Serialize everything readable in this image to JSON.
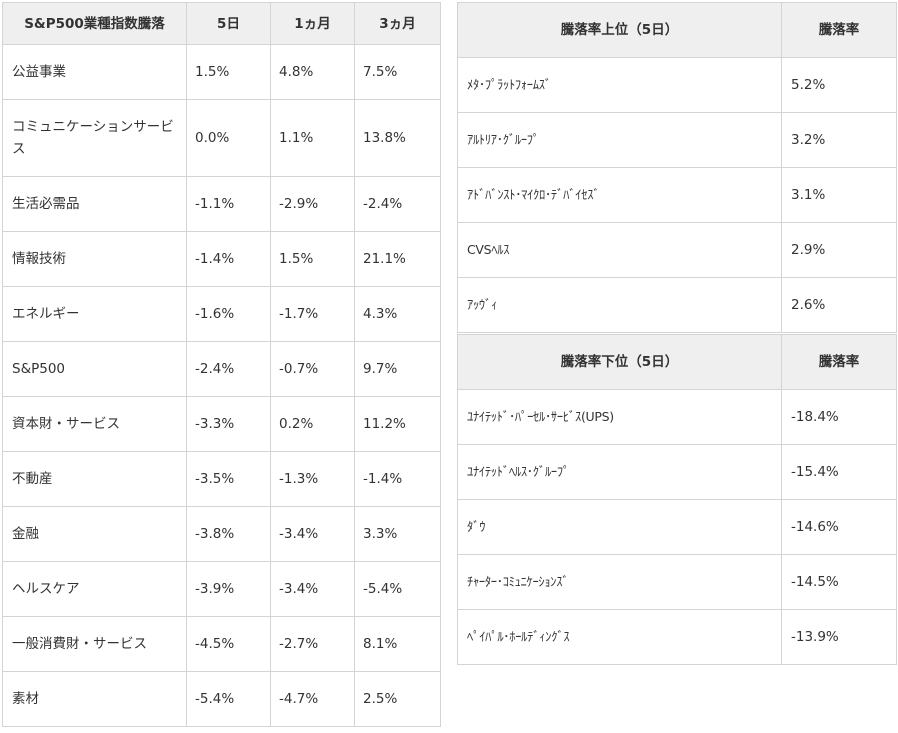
{
  "sector_table": {
    "headers": [
      "S&P500業種指数騰落",
      "5日",
      "1ヵ月",
      "3ヵ月"
    ],
    "rows": [
      {
        "name": "公益事業",
        "d5": "1.5%",
        "m1": "4.8%",
        "m3": "7.5%"
      },
      {
        "name": "コミュニケーションサービス",
        "d5": "0.0%",
        "m1": "1.1%",
        "m3": "13.8%"
      },
      {
        "name": "生活必需品",
        "d5": "-1.1%",
        "m1": "-2.9%",
        "m3": "-2.4%"
      },
      {
        "name": "情報技術",
        "d5": "-1.4%",
        "m1": "1.5%",
        "m3": "21.1%"
      },
      {
        "name": "エネルギー",
        "d5": "-1.6%",
        "m1": "-1.7%",
        "m3": "4.3%"
      },
      {
        "name": "S&P500",
        "d5": "-2.4%",
        "m1": "-0.7%",
        "m3": "9.7%"
      },
      {
        "name": "資本財・サービス",
        "d5": "-3.3%",
        "m1": "0.2%",
        "m3": "11.2%"
      },
      {
        "name": "不動産",
        "d5": "-3.5%",
        "m1": "-1.3%",
        "m3": "-1.4%"
      },
      {
        "name": "金融",
        "d5": "-3.8%",
        "m1": "-3.4%",
        "m3": "3.3%"
      },
      {
        "name": "ヘルスケア",
        "d5": "-3.9%",
        "m1": "-3.4%",
        "m3": "-5.4%"
      },
      {
        "name": "一般消費財・サービス",
        "d5": "-4.5%",
        "m1": "-2.7%",
        "m3": "8.1%"
      },
      {
        "name": "素材",
        "d5": "-5.4%",
        "m1": "-4.7%",
        "m3": "2.5%"
      }
    ]
  },
  "top_table": {
    "headers": [
      "騰落率上位（5日）",
      "騰落率"
    ],
    "rows": [
      {
        "name": "ﾒﾀ･ﾌﾟﾗｯﾄﾌｫｰﾑｽﾞ",
        "rate": "5.2%"
      },
      {
        "name": "ｱﾙﾄﾘｱ･ｸﾞﾙｰﾌﾟ",
        "rate": "3.2%"
      },
      {
        "name": "ｱﾄﾞﾊﾞﾝｽﾄ･ﾏｲｸﾛ･ﾃﾞﾊﾞｲｾｽﾞ",
        "rate": "3.1%"
      },
      {
        "name": "CVSﾍﾙｽ",
        "rate": "2.9%"
      },
      {
        "name": "ｱｯｳﾞｨ",
        "rate": "2.6%"
      }
    ]
  },
  "bottom_table": {
    "headers": [
      "騰落率下位（5日）",
      "騰落率"
    ],
    "rows": [
      {
        "name": "ﾕﾅｲﾃｯﾄﾞ･ﾊﾟｰｾﾙ･ｻｰﾋﾞｽ(UPS)",
        "rate": "-18.4%"
      },
      {
        "name": "ﾕﾅｲﾃｯﾄﾞﾍﾙｽ･ｸﾞﾙｰﾌﾟ",
        "rate": "-15.4%"
      },
      {
        "name": "ﾀﾞｳ",
        "rate": "-14.6%"
      },
      {
        "name": "ﾁｬｰﾀｰ･ｺﾐｭﾆｹｰｼｮﾝｽﾞ",
        "rate": "-14.5%"
      },
      {
        "name": "ﾍﾟｲﾊﾟﾙ･ﾎｰﾙﾃﾞｨﾝｸﾞｽ",
        "rate": "-13.9%"
      }
    ]
  },
  "colors": {
    "header_bg": "#efefef",
    "border": "#d4d4d4",
    "text": "#333333"
  }
}
